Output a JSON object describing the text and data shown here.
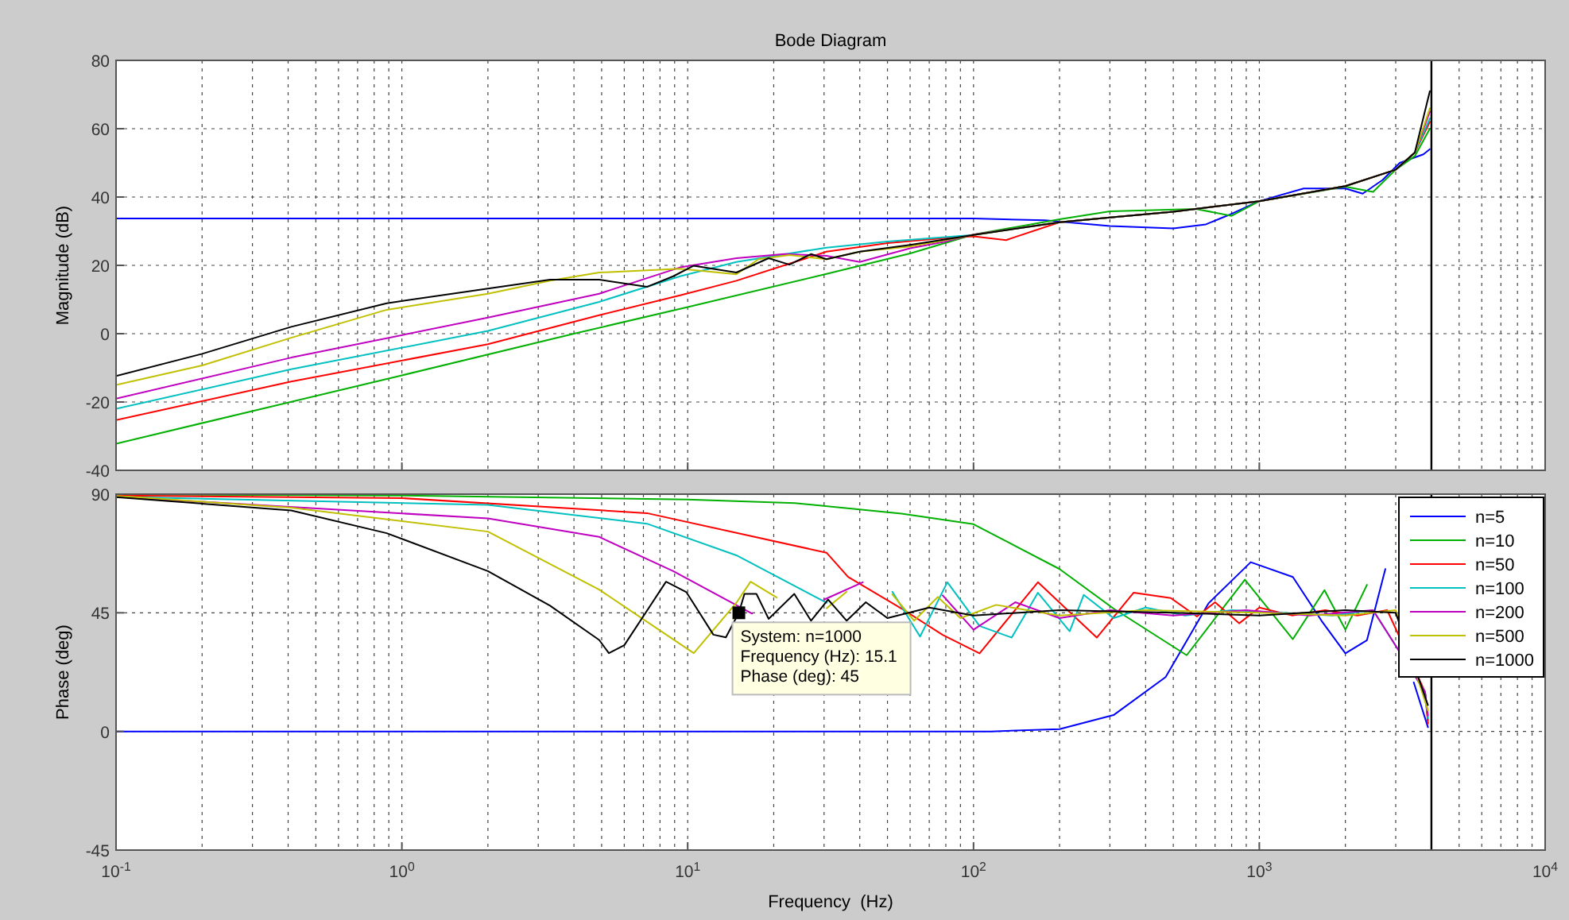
{
  "chart_data": [
    {
      "type": "line",
      "title": "Bode Diagram",
      "ylabel": "Magnitude (dB)",
      "log": "x",
      "grid": true,
      "tick_labels": "y",
      "xlim": [
        0.1,
        10000
      ],
      "xticks": [
        {
          "value": 0.1,
          "label": null
        },
        {
          "value": 1,
          "label": null
        },
        {
          "value": 10,
          "label": null
        },
        {
          "value": 100,
          "label": null
        },
        {
          "value": 1000,
          "label": null
        },
        {
          "value": 10000,
          "label": null
        }
      ],
      "ylim": [
        -40,
        80
      ],
      "yticks": [
        -40,
        -20,
        0,
        20,
        40,
        60,
        80
      ],
      "ref_lines": [
        {
          "axis": "x",
          "value": 4000,
          "color": "#000000"
        }
      ],
      "series": [
        {
          "color": "#0000ff",
          "x": [
            0.1,
            1,
            10,
            100,
            178,
            300,
            500,
            650,
            780,
            1000,
            1430,
            2000,
            2300,
            2700,
            3100,
            3750,
            3950
          ],
          "values": [
            33.7,
            33.7,
            33.7,
            33.7,
            33.2,
            31.5,
            30.8,
            32,
            34.7,
            38.8,
            42.5,
            42.5,
            41,
            45,
            50,
            52.5,
            54
          ]
        },
        {
          "color": "#00b000",
          "x": [
            0.1,
            1,
            4,
            10,
            30.6,
            60,
            100,
            200,
            300,
            600,
            800,
            1000,
            2000,
            2500,
            3000,
            3500,
            3950
          ],
          "values": [
            -32.2,
            -12.2,
            0,
            7.8,
            17.5,
            23.5,
            29,
            33.5,
            35.8,
            36.5,
            34.5,
            38.8,
            43,
            41.5,
            48,
            52,
            60
          ]
        },
        {
          "color": "#ff0000",
          "x": [
            0.1,
            0.41,
            2,
            4.9,
            9.4,
            14.8,
            30.6,
            50,
            80,
            100,
            130,
            200,
            300,
            500,
            1000,
            2000,
            3000,
            3500,
            3950
          ],
          "values": [
            -25.3,
            -14,
            -3.1,
            5.4,
            11.2,
            15.5,
            24,
            26.5,
            28,
            28.5,
            27.4,
            32.6,
            34,
            35.7,
            38.8,
            43.2,
            48,
            53,
            62
          ]
        },
        {
          "color": "#00c0c0",
          "x": [
            0.1,
            0.41,
            2,
            4.9,
            9.4,
            14.8,
            30.6,
            50,
            100,
            200,
            300,
            500,
            1000,
            2000,
            3000,
            3500,
            3950
          ],
          "values": [
            -22,
            -10.4,
            0.8,
            9.3,
            16.8,
            21,
            25.2,
            27,
            28.9,
            32.6,
            34,
            35.7,
            38.8,
            43.2,
            48,
            53,
            63
          ]
        },
        {
          "color": "#c000c0",
          "x": [
            0.1,
            0.41,
            2,
            4.9,
            9.4,
            14.8,
            21.8,
            30.6,
            40,
            60,
            80,
            100,
            200,
            300,
            500,
            1000,
            2000,
            3000,
            3500,
            3950
          ],
          "values": [
            -19,
            -7,
            4.7,
            11.7,
            19.4,
            22.1,
            23.3,
            22.8,
            21,
            25,
            27,
            29,
            32.6,
            34,
            35.7,
            38.8,
            43.2,
            48,
            53,
            65
          ]
        },
        {
          "color": "#c0c000",
          "x": [
            0.1,
            0.2,
            0.41,
            0.885,
            2,
            3.3,
            4.9,
            9.4,
            14.8,
            17.7,
            22.7,
            30.6,
            40,
            60,
            100,
            200,
            300,
            500,
            1000,
            2000,
            3000,
            3500,
            3950
          ],
          "values": [
            -15,
            -9.3,
            -1.2,
            7,
            11.7,
            15.5,
            17.9,
            19,
            17.4,
            21.8,
            23,
            21.8,
            24,
            25.5,
            28.9,
            32.6,
            34,
            35.7,
            38.8,
            43.2,
            48,
            53,
            66
          ]
        },
        {
          "color": "#000000",
          "x": [
            0.1,
            0.2,
            0.41,
            0.885,
            2,
            3.3,
            4.9,
            7.2,
            8.9,
            10.5,
            14.8,
            19.2,
            22.7,
            27,
            30.6,
            40,
            60,
            100,
            200,
            300,
            500,
            1000,
            2000,
            3000,
            3500,
            3950
          ],
          "values": [
            -12.4,
            -5.9,
            2,
            8.9,
            13.2,
            15.8,
            15.8,
            13.7,
            16.8,
            19.9,
            17.9,
            22.1,
            20.2,
            23.3,
            21.8,
            24,
            26,
            28.9,
            32.6,
            34,
            35.7,
            38.8,
            43.2,
            48,
            53,
            71
          ]
        }
      ]
    },
    {
      "type": "line",
      "ylabel": "Phase (deg)",
      "xlabel": "Frequency  (Hz)",
      "log": "x",
      "grid": true,
      "legend": "top right",
      "xlim": [
        0.1,
        10000
      ],
      "xticks": [
        {
          "value": 0.1,
          "label": "10$^{-1}$"
        },
        {
          "value": 1,
          "label": "10$^{0}$"
        },
        {
          "value": 10,
          "label": "10$^{1}$"
        },
        {
          "value": 100,
          "label": "10$^{2}$"
        },
        {
          "value": 1000,
          "label": "10$^{3}$"
        },
        {
          "value": 10000,
          "label": "10$^{4}$"
        }
      ],
      "ylim": [
        -45,
        90
      ],
      "yticks": [
        -45,
        0,
        45,
        90
      ],
      "ref_lines": [
        {
          "axis": "x",
          "value": 4000,
          "color": "#000000"
        }
      ],
      "annotations": [
        {
          "text": "System: n=1000\nFrequency (Hz): 15.1\nPhase (deg): 45",
          "x": 15.1,
          "y": 45
        }
      ],
      "series": [
        {
          "name": "n=5",
          "color": "#0000ff",
          "x": [
            0.1,
            1,
            10,
            115,
            200,
            309,
            470,
            664,
            933,
            1310,
            1650,
            2000,
            2380,
            2760,
            3070,
            3470,
            3890
          ],
          "values": [
            0,
            0,
            0,
            0,
            0.9,
            6.2,
            20.6,
            48.6,
            64.2,
            58.6,
            42,
            29.6,
            34.6,
            61.6,
            null,
            18.6,
            1.6
          ]
        },
        {
          "name": "n=10",
          "color": "#00b000",
          "x": [
            0.1,
            1,
            10,
            23.7,
            56,
            100,
            200,
            309,
            557,
            890,
            1310,
            1690,
            2000,
            2380,
            3040,
            3800,
            3890
          ],
          "values": [
            89.9,
            89.5,
            88,
            86.6,
            82.6,
            78.6,
            61.6,
            46.6,
            28.9,
            57.6,
            35,
            53.6,
            38.6,
            55.6,
            null,
            15,
            4.4
          ]
        },
        {
          "name": "n=50",
          "color": "#ff0000",
          "x": [
            0.1,
            1,
            7.2,
            30.6,
            36.4,
            56,
            78,
            105,
            168,
            270,
            363,
            490,
            605,
            700,
            850,
            1000,
            1300,
            1700,
            2200,
            2800,
            3800,
            3890
          ],
          "values": [
            89.5,
            88.5,
            82.8,
            67.8,
            58.6,
            46.6,
            36.6,
            29.6,
            56.6,
            35.6,
            52.6,
            50.6,
            43.6,
            49,
            41,
            47,
            44,
            46,
            44,
            46,
            15,
            3
          ]
        },
        {
          "name": "n=100",
          "color": "#00c0c0",
          "x": [
            0.1,
            2,
            7.2,
            14.8,
            30.6,
            40,
            52,
            65,
            81,
            105,
            136,
            168,
            217,
            243,
            309,
            400,
            550,
            800,
            1200,
            1800,
            2500,
            3800,
            3890
          ],
          "values": [
            89,
            85.9,
            78.8,
            66.8,
            48.8,
            null,
            53,
            36,
            56.6,
            40,
            35.6,
            52.6,
            38,
            51.8,
            43,
            47,
            44,
            46,
            45,
            44,
            46,
            15,
            5
          ]
        },
        {
          "name": "n=200",
          "color": "#c000c0",
          "x": [
            0.1,
            2,
            4.9,
            8.9,
            16.8,
            21,
            30,
            41,
            56,
            78,
            100,
            140,
            200,
            300,
            500,
            900,
            1500,
            2500,
            3800,
            3890
          ],
          "values": [
            89,
            80.8,
            73.8,
            60.8,
            44.7,
            null,
            50,
            56.6,
            null,
            51.6,
            38.6,
            49,
            43,
            46,
            44,
            46,
            44,
            46,
            15,
            6
          ]
        },
        {
          "name": "n=500",
          "color": "#c0c000",
          "x": [
            0.1,
            0.41,
            2,
            4.9,
            10.5,
            14.8,
            16.6,
            20.5,
            24.3,
            30.6,
            36,
            44,
            52,
            62,
            75,
            90,
            120,
            200,
            400,
            1000,
            2000,
            3000,
            3890
          ],
          "values": [
            89.3,
            84.9,
            75.8,
            53.8,
            29.7,
            48.8,
            56.8,
            50.8,
            null,
            46.7,
            53,
            null,
            52,
            42,
            51,
            43,
            48,
            44,
            46,
            45,
            44,
            46,
            8
          ]
        },
        {
          "name": "n=1000",
          "color": "#000000",
          "x": [
            0.1,
            0.41,
            0.885,
            2,
            3.3,
            4.9,
            5.3,
            6,
            8.4,
            9.9,
            12.3,
            13.6,
            15.1,
            15.8,
            17.4,
            19.2,
            23.6,
            27,
            31,
            36,
            42,
            50,
            70,
            100,
            200,
            500,
            1000,
            2000,
            3000,
            3890
          ],
          "values": [
            88.9,
            83.8,
            75.2,
            60.8,
            47.7,
            34.7,
            29.7,
            32.7,
            56.8,
            52.8,
            36.7,
            35.7,
            45,
            52.2,
            52.2,
            42.7,
            52.2,
            42,
            50,
            42,
            49,
            43,
            47,
            44,
            46,
            45,
            44,
            46,
            45,
            10
          ]
        }
      ]
    }
  ]
}
